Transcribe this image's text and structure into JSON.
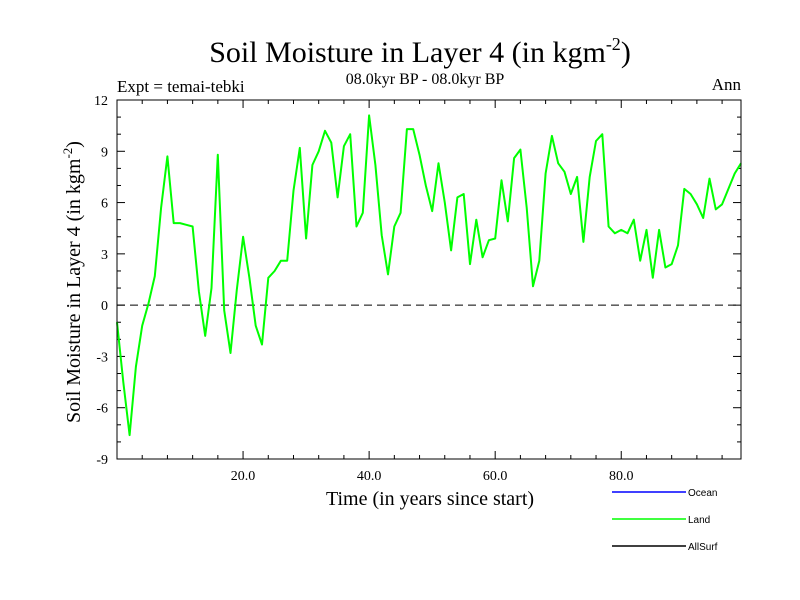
{
  "chart_data": {
    "type": "line",
    "title_main": "Soil Moisture in Layer 4 (in kgm",
    "title_exp": "-2",
    "title_close": ")",
    "subtitle": "08.0kyr BP - 08.0kyr BP",
    "expt_label": "Expt = temai-tebki",
    "period_label": "Ann",
    "ylabel_main": "Soil Moisture in Layer 4 (in kgm",
    "ylabel_exp": "-2",
    "ylabel_close": ")",
    "xlabel": "Time (in years since start)",
    "xlim": [
      0,
      99
    ],
    "ylim": [
      -9,
      12
    ],
    "xticks": [
      20,
      40,
      60,
      80
    ],
    "xtick_labels": [
      "20.0",
      "40.0",
      "60.0",
      "80.0"
    ],
    "yticks": [
      -9,
      -6,
      -3,
      0,
      3,
      6,
      9,
      12
    ],
    "ytick_labels": [
      "-9",
      "-6",
      "-3",
      "0",
      "3",
      "6",
      "9",
      "12"
    ],
    "zero_line": "dashed",
    "series": [
      {
        "name": "Ocean",
        "color": "#0000ff",
        "values": []
      },
      {
        "name": "Land",
        "color": "#00ff00",
        "x": [
          0,
          1,
          2,
          3,
          4,
          5,
          6,
          7,
          8,
          9,
          10,
          11,
          12,
          13,
          14,
          15,
          16,
          17,
          18,
          19,
          20,
          21,
          22,
          23,
          24,
          25,
          26,
          27,
          28,
          29,
          30,
          31,
          32,
          33,
          34,
          35,
          36,
          37,
          38,
          39,
          40,
          41,
          42,
          43,
          44,
          45,
          46,
          47,
          48,
          49,
          50,
          51,
          52,
          53,
          54,
          55,
          56,
          57,
          58,
          59,
          60,
          61,
          62,
          63,
          64,
          65,
          66,
          67,
          68,
          69,
          70,
          71,
          72,
          73,
          74,
          75,
          76,
          77,
          78,
          79,
          80,
          81,
          82,
          83,
          84,
          85,
          86,
          87,
          88,
          89,
          90,
          91,
          92,
          93,
          94,
          95,
          96,
          97,
          98,
          99
        ],
        "values": [
          -1.0,
          -4.5,
          -7.6,
          -3.6,
          -1.2,
          0.1,
          1.7,
          5.7,
          8.7,
          4.8,
          4.8,
          4.7,
          4.6,
          0.8,
          -1.8,
          1.0,
          8.8,
          -0.3,
          -2.8,
          0.9,
          4.0,
          1.6,
          -1.2,
          -2.3,
          1.6,
          2.0,
          2.6,
          2.6,
          6.7,
          9.2,
          3.9,
          8.2,
          9.0,
          10.2,
          9.5,
          6.3,
          9.3,
          10.0,
          4.6,
          5.4,
          11.1,
          8.2,
          4.1,
          1.8,
          4.6,
          5.4,
          10.3,
          10.3,
          8.8,
          7.0,
          5.5,
          8.3,
          6.0,
          3.2,
          6.3,
          6.5,
          2.4,
          5.0,
          2.8,
          3.8,
          3.9,
          7.3,
          4.9,
          8.6,
          9.1,
          5.7,
          1.1,
          2.6,
          7.7,
          9.9,
          8.3,
          7.8,
          6.5,
          7.5,
          3.7,
          7.5,
          9.6,
          10.0,
          4.6,
          4.2,
          4.4,
          4.2,
          5.0,
          2.6,
          4.4,
          1.6,
          4.4,
          2.2,
          2.4,
          3.5,
          6.8,
          6.5,
          5.9,
          5.1,
          7.4,
          5.6,
          5.9,
          6.8,
          7.7,
          8.3
        ]
      },
      {
        "name": "AllSurf",
        "color": "#000000",
        "values": []
      }
    ]
  }
}
